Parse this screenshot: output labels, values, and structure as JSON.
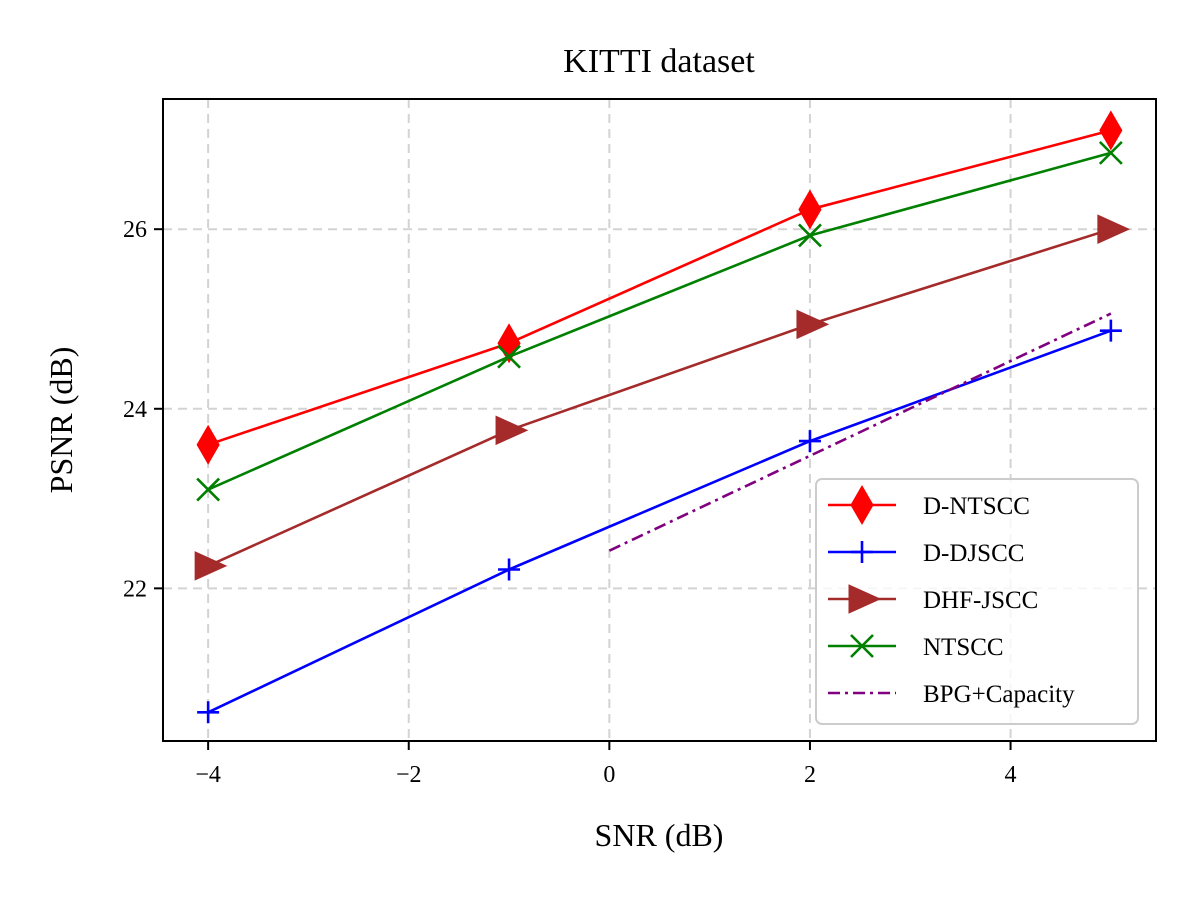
{
  "chart_data": {
    "type": "line",
    "title": "KITTI dataset",
    "xlabel": "SNR (dB)",
    "ylabel": "PSNR (dB)",
    "xlim": [
      -4.45,
      5.45
    ],
    "ylim": [
      20.3,
      27.45
    ],
    "xticks": [
      -4,
      -2,
      0,
      2,
      4
    ],
    "xtick_labels": [
      "−4",
      "−2",
      "0",
      "2",
      "4"
    ],
    "yticks": [
      22,
      24,
      26
    ],
    "ytick_labels": [
      "22",
      "24",
      "26"
    ],
    "grid": true,
    "legend_position": "lower-right",
    "series": [
      {
        "name": "D-NTSCC",
        "color": "#ff0000",
        "marker": "thin-diamond",
        "linestyle": "solid",
        "x": [
          -4,
          -1,
          2,
          5
        ],
        "y": [
          23.6,
          24.73,
          26.22,
          27.1
        ]
      },
      {
        "name": "D-DJSCC",
        "color": "#0000ff",
        "marker": "plus",
        "linestyle": "solid",
        "x": [
          -4,
          -1,
          2,
          5
        ],
        "y": [
          20.62,
          22.21,
          23.64,
          24.87
        ]
      },
      {
        "name": "DHF-JSCC",
        "color": "#a52a2a",
        "marker": "triangle-right",
        "linestyle": "solid",
        "x": [
          -4,
          -1,
          2,
          5
        ],
        "y": [
          22.25,
          23.76,
          24.94,
          26.0
        ]
      },
      {
        "name": "NTSCC",
        "color": "#008000",
        "marker": "x",
        "linestyle": "solid",
        "x": [
          -4,
          -1,
          2,
          5
        ],
        "y": [
          23.1,
          24.58,
          25.93,
          26.85
        ]
      },
      {
        "name": "BPG+Capacity",
        "color": "#800080",
        "marker": "none",
        "linestyle": "dashdot",
        "x": [
          0,
          5
        ],
        "y": [
          22.42,
          25.06
        ]
      }
    ]
  }
}
